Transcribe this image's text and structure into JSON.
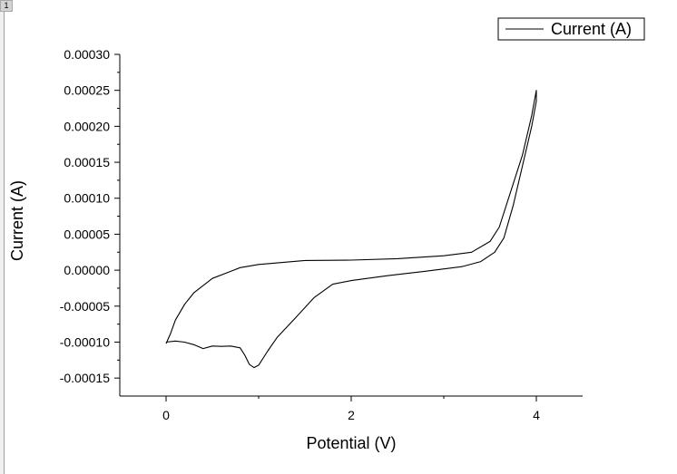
{
  "page_tab": "1",
  "chart_data": {
    "type": "line",
    "title": "",
    "xlabel": "Potential (V)",
    "ylabel": "Current (A)",
    "xlim": [
      -0.5,
      4.5
    ],
    "ylim": [
      -0.000175,
      0.0003
    ],
    "x_ticks": [
      0,
      2,
      4
    ],
    "x_tick_labels": [
      "0",
      "2",
      "4"
    ],
    "y_ticks": [
      -0.00015,
      -0.0001,
      -5e-05,
      0,
      5e-05,
      0.0001,
      0.00015,
      0.0002,
      0.00025,
      0.0003
    ],
    "y_tick_labels": [
      "-0.00015",
      "-0.00010",
      "-0.00005",
      "0.00000",
      "0.00005",
      "0.00010",
      "0.00015",
      "0.00020",
      "0.00025",
      "0.00030"
    ],
    "grid": false,
    "legend_position": "top-right",
    "series": [
      {
        "name": "Current (A)",
        "color": "#000000",
        "x": [
          0.0,
          0.1,
          0.2,
          0.3,
          0.4,
          0.5,
          0.6,
          0.7,
          0.8,
          0.85,
          0.9,
          0.95,
          1.0,
          1.1,
          1.2,
          1.4,
          1.6,
          1.8,
          2.0,
          2.4,
          2.8,
          3.2,
          3.4,
          3.55,
          3.65,
          3.75,
          3.85,
          3.95,
          4.0,
          4.0,
          3.95,
          3.85,
          3.7,
          3.6,
          3.5,
          3.3,
          3.0,
          2.5,
          2.0,
          1.5,
          1.0,
          0.8,
          0.5,
          0.3,
          0.2,
          0.1,
          0.05,
          0.0
        ],
        "y": [
          -0.0001,
          -9.85e-05,
          -0.0001,
          -0.0001035,
          -0.000109,
          -0.0001055,
          -0.000106,
          -0.0001055,
          -0.000108,
          -0.000118,
          -0.000131,
          -0.0001355,
          -0.000132,
          -0.000112,
          -9.35e-05,
          -6.6e-05,
          -3.8e-05,
          -1.95e-05,
          -1.45e-05,
          -7.5e-06,
          -1.5e-06,
          5e-06,
          1.2e-05,
          2.5e-05,
          4.5e-05,
          9e-05,
          0.000145,
          0.0002,
          0.000235,
          0.00025,
          0.000215,
          0.00016,
          0.0001,
          6e-05,
          4e-05,
          2.5e-05,
          2e-05,
          1.6e-05,
          1.4e-05,
          1.35e-05,
          8e-06,
          3.5e-06,
          -1.15e-05,
          -3.15e-05,
          -4.75e-05,
          -6.95e-05,
          -8.75e-05,
          -0.000102
        ]
      }
    ]
  }
}
